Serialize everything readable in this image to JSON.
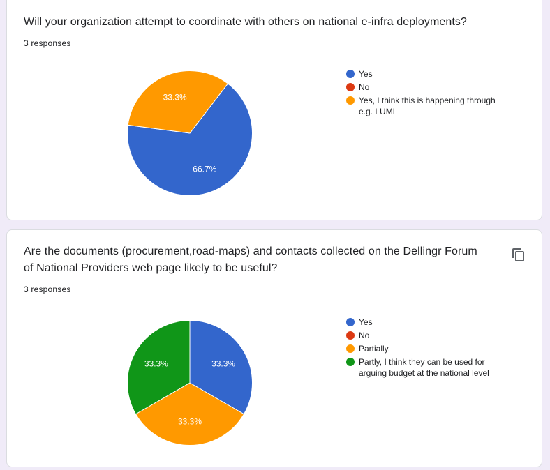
{
  "questions": [
    {
      "title_lines": [
        "Will your organization attempt to coordinate with others on national e-infra deployments?"
      ],
      "responses": "3 responses"
    },
    {
      "title_lines": [
        "Are the documents (procurement,road-maps) and contacts collected on the Dellingr Forum",
        "of National Providers web page likely to be useful?"
      ],
      "responses": "3 responses"
    }
  ],
  "chart_data": [
    {
      "type": "pie",
      "title": "Will your organization attempt to coordinate with others on national e-infra deployments?",
      "slices": [
        {
          "label": "Yes",
          "value": 66.7,
          "display": "66.7%",
          "color": "#3366cc"
        },
        {
          "label": "No",
          "value": 0,
          "display": "",
          "color": "#dc3912"
        },
        {
          "label": "Yes, I think this is happening through e.g. LUMI",
          "value": 33.3,
          "display": "33.3%",
          "color": "#ff9900"
        }
      ],
      "legend_lines": [
        [
          "Yes"
        ],
        [
          "No"
        ],
        [
          "Yes, I think this is happening through",
          "e.g. LUMI"
        ]
      ],
      "legend_position": "right"
    },
    {
      "type": "pie",
      "title": "Are the documents (procurement,road-maps) and contacts collected on the Dellingr Forum of National Providers web page likely to be useful?",
      "slices": [
        {
          "label": "Yes",
          "value": 33.3,
          "display": "33.3%",
          "color": "#3366cc"
        },
        {
          "label": "No",
          "value": 0,
          "display": "",
          "color": "#dc3912"
        },
        {
          "label": "Partially.",
          "value": 33.3,
          "display": "33.3%",
          "color": "#ff9900"
        },
        {
          "label": "Partly, I think they can be used for arguing budget at the national level",
          "value": 33.3,
          "display": "33.3%",
          "color": "#109618"
        }
      ],
      "legend_lines": [
        [
          "Yes"
        ],
        [
          "No"
        ],
        [
          "Partially."
        ],
        [
          "Partly, I think they can be used for",
          "arguing budget at the national level"
        ]
      ],
      "legend_position": "right"
    }
  ],
  "icons": {
    "copy": "copy-icon"
  }
}
